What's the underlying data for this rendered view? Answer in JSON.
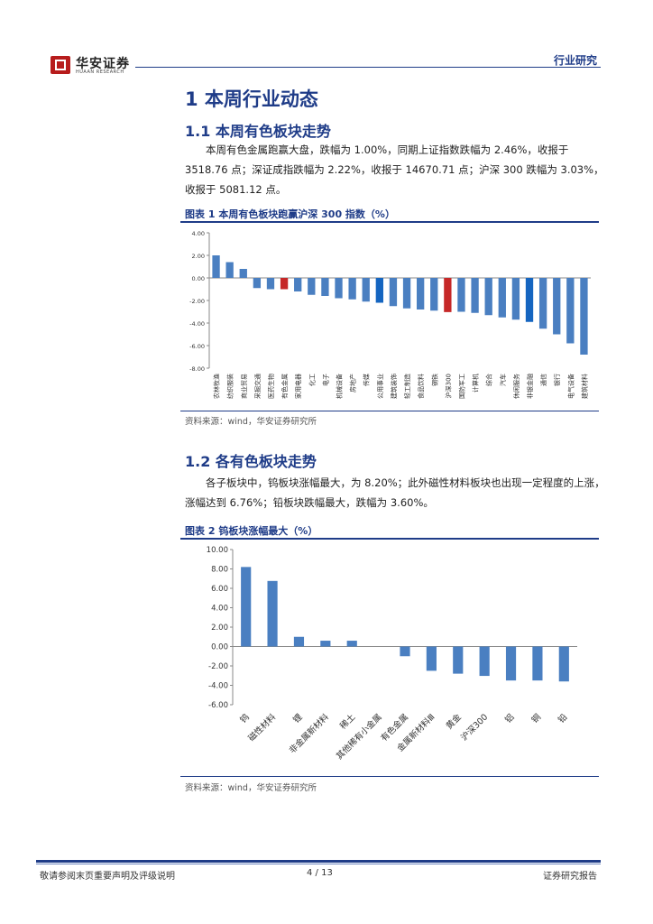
{
  "header": {
    "brand": "华安证券",
    "brand_en": "HUAAN RESEARCH",
    "section": "行业研究"
  },
  "section1": {
    "title": "1  本周行业动态"
  },
  "section1_1": {
    "title": "1.1  本周有色板块走势",
    "para": "本周有色金属跑赢大盘，跌幅为 1.00%，同期上证指数跌幅为 2.46%，收报于 3518.76 点；深证成指跌幅为 2.22%，收报于 14670.71 点；沪深 300 跌幅为 3.03%，收报于 5081.12 点。"
  },
  "figure1": {
    "title": "图表 1 本周有色板块跑赢沪深 300 指数（%）",
    "source": "资料来源：wind，华安证券研究所"
  },
  "section1_2": {
    "title": "1.2  各有色板块走势",
    "para": "各子板块中，钨板块涨幅最大，为 8.20%；此外磁性材料板块也出现一定程度的上涨，涨幅达到 6.76%；铅板块跌幅最大，跌幅为 3.60%。"
  },
  "figure2": {
    "title": "图表 2 钨板块涨幅最大（%）",
    "source": "资料来源：wind，华安证券研究所"
  },
  "footer": {
    "left": "敬请参阅末页重要声明及评级说明",
    "page": "4 / 13",
    "right": "证券研究报告"
  },
  "colors": {
    "primary": "#1f3c88",
    "bar": "#4a7fc1",
    "bar_dark": "#1565c0",
    "bar_red": "#c62828"
  },
  "chart_data": [
    {
      "type": "bar",
      "categories": [
        "农林牧渔",
        "纺织服装",
        "商业贸易",
        "采掘交通",
        "医药生物",
        "有色金属",
        "家用电器",
        "化工",
        "电子",
        "机械设备",
        "房地产",
        "传媒",
        "公用事业",
        "建筑装饰",
        "轻工制造",
        "食品饮料",
        "钢铁",
        "沪深300",
        "国防军工",
        "计算机",
        "综合",
        "汽车",
        "休闲服务",
        "非银金融",
        "通信",
        "银行",
        "电气设备",
        "建筑材料"
      ],
      "values": [
        2.0,
        1.4,
        0.8,
        -0.9,
        -1.0,
        -1.0,
        -1.2,
        -1.5,
        -1.6,
        -1.8,
        -1.9,
        -2.1,
        -2.2,
        -2.5,
        -2.7,
        -2.8,
        -2.9,
        -3.03,
        -3.0,
        -3.1,
        -3.3,
        -3.5,
        -3.7,
        -3.9,
        -4.5,
        -5.0,
        -5.8,
        -6.8
      ],
      "highlight_red": [
        "有色金属",
        "沪深300"
      ],
      "highlight_dark": [
        "公用事业",
        "非银金融"
      ],
      "yticks": [
        "4.00",
        "2.00",
        "0.00",
        "-2.00",
        "-4.00",
        "-6.00",
        "-8.00"
      ],
      "ylim": [
        -8,
        4
      ]
    },
    {
      "type": "bar",
      "categories": [
        "钨",
        "磁性材料",
        "锂",
        "非金属新材料",
        "稀土",
        "其他稀有小金属",
        "有色金属",
        "金属新材料Ⅲ",
        "黄金",
        "沪深300",
        "铝",
        "铜",
        "铅"
      ],
      "values": [
        8.2,
        6.76,
        1.0,
        0.6,
        0.6,
        0.0,
        -1.0,
        -2.5,
        -2.8,
        -3.03,
        -3.5,
        -3.5,
        -3.6
      ],
      "yticks": [
        "10.00",
        "8.00",
        "6.00",
        "4.00",
        "2.00",
        "0.00",
        "-2.00",
        "-4.00",
        "-6.00"
      ],
      "ylim": [
        -6,
        10
      ]
    }
  ]
}
